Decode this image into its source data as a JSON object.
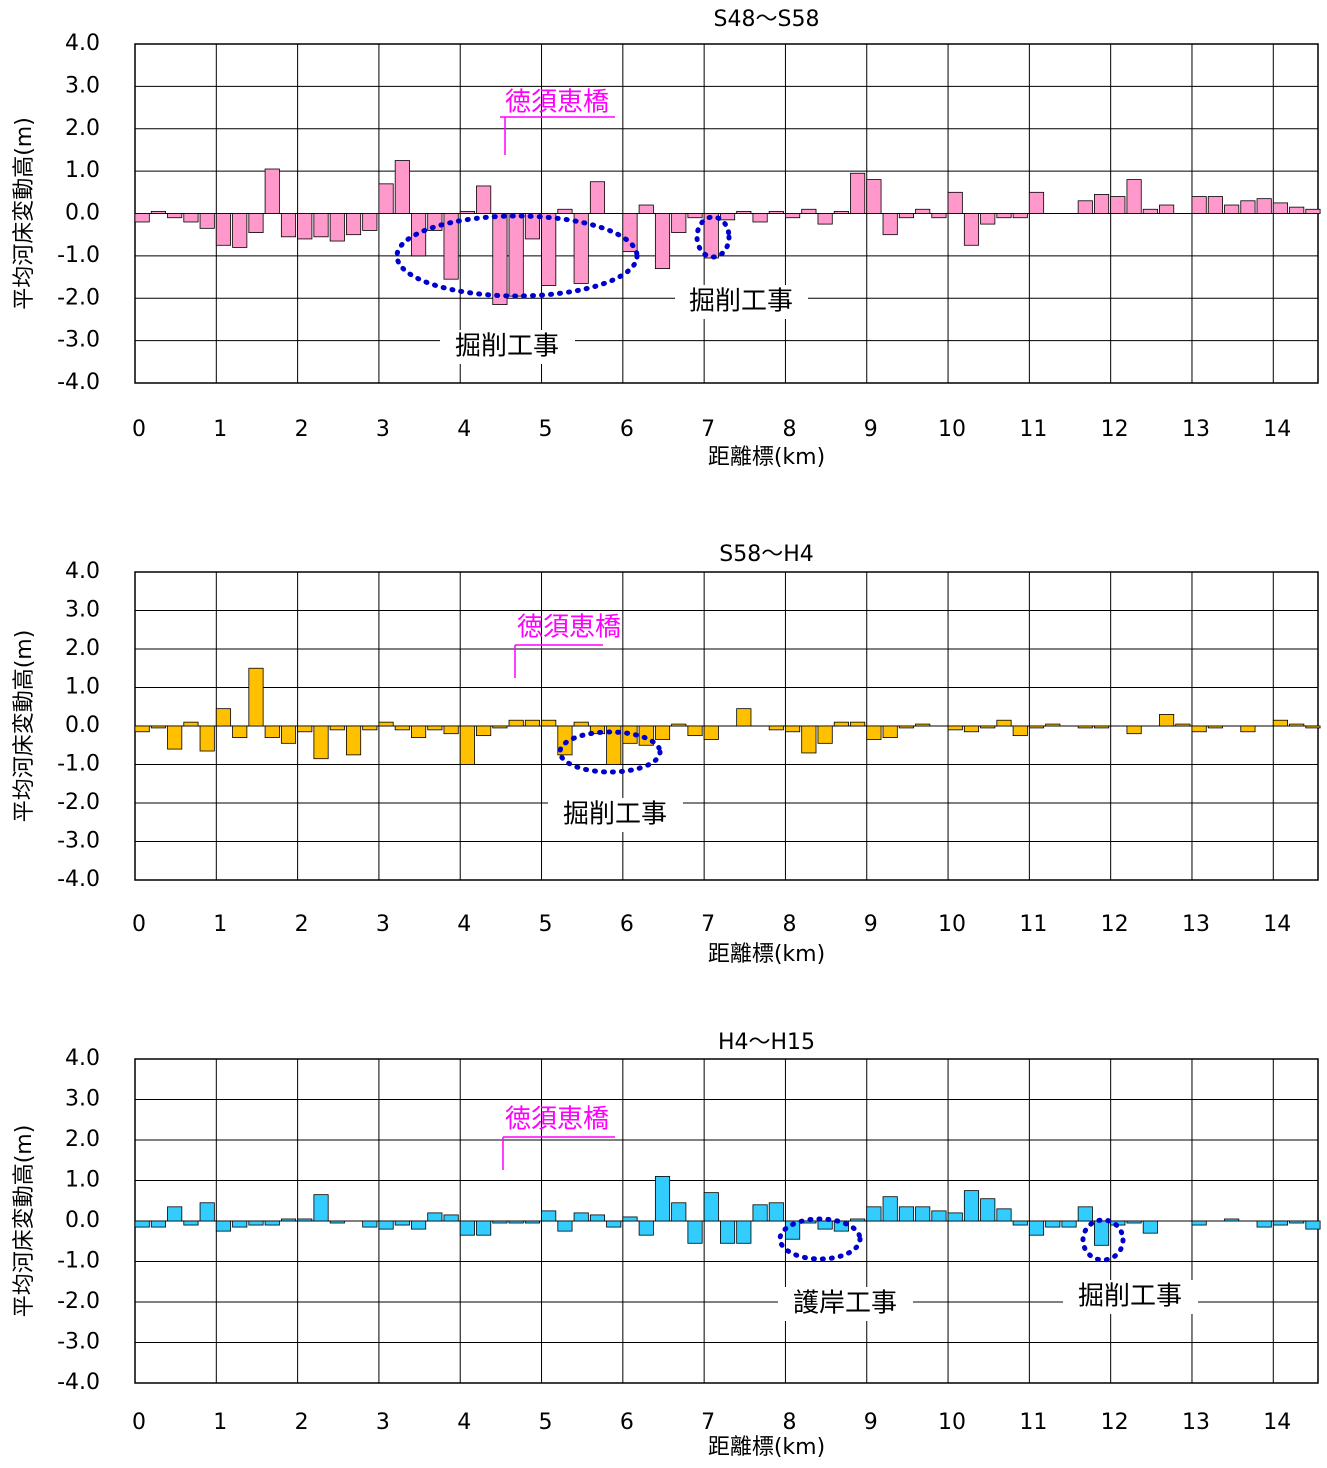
{
  "chart_data": [
    {
      "type": "bar",
      "title": "S48～S58",
      "x_label": "距離標(km)",
      "y_label": "平均河床変動高(m)",
      "color": "#FF99CC",
      "grid": true,
      "annotations": [
        "徳須恵橋",
        "掘削工事",
        "掘削工事"
      ],
      "xlim": [
        0,
        14.55
      ],
      "xticks": [
        0,
        1,
        2,
        3,
        4,
        5,
        6,
        7,
        8,
        9,
        10,
        11,
        12,
        13,
        14
      ],
      "ylim": [
        -4,
        4
      ],
      "yticks": [
        {
          "value": 4,
          "label": "4.0"
        },
        {
          "value": 3,
          "label": "3.0"
        },
        {
          "value": 2,
          "label": "2.0"
        },
        {
          "value": 1,
          "label": "1.0"
        },
        {
          "value": 0,
          "label": "0.0"
        },
        {
          "value": -1,
          "label": "-1.0"
        },
        {
          "value": -2,
          "label": "-2.0"
        },
        {
          "value": -3,
          "label": "-3.0"
        },
        {
          "value": -4,
          "label": "-4.0"
        }
      ],
      "x": [
        0,
        0.2,
        0.4,
        0.6,
        0.8,
        1,
        1.2,
        1.4,
        1.6,
        1.8,
        2,
        2.2,
        2.4,
        2.6,
        2.8,
        3,
        3.2,
        3.4,
        3.6,
        3.8,
        4,
        4.2,
        4.4,
        4.6,
        4.8,
        5,
        5.2,
        5.4,
        5.6,
        5.8,
        6,
        6.2,
        6.4,
        6.6,
        6.8,
        7,
        7.2,
        7.4,
        7.6,
        7.8,
        8,
        8.2,
        8.4,
        8.6,
        8.8,
        9,
        9.2,
        9.4,
        9.6,
        9.8,
        10,
        10.2,
        10.4,
        10.6,
        10.8,
        11,
        11.2,
        11.4,
        11.6,
        11.8,
        12,
        12.2,
        12.4,
        12.6,
        12.8,
        13,
        13.2,
        13.4,
        13.6,
        13.8,
        14,
        14.2,
        14.4
      ],
      "values": [
        -0.2,
        0.05,
        -0.1,
        -0.2,
        -0.35,
        -0.75,
        -0.8,
        -0.45,
        1.05,
        -0.55,
        -0.6,
        -0.55,
        -0.65,
        -0.5,
        -0.4,
        0.7,
        1.25,
        -1.0,
        -0.4,
        -1.55,
        0.05,
        0.65,
        -2.15,
        -1.95,
        -0.6,
        -1.7,
        0.1,
        -1.65,
        0.75,
        0,
        -0.9,
        0.2,
        -1.3,
        -0.45,
        -0.1,
        -1.05,
        -0.15,
        0.05,
        -0.2,
        0.05,
        -0.1,
        0.1,
        -0.25,
        0.05,
        0.95,
        0.8,
        -0.5,
        -0.1,
        0.1,
        -0.1,
        0.5,
        -0.75,
        -0.25,
        -0.1,
        -0.1,
        0.5,
        0,
        0,
        0.3,
        0.45,
        0.4,
        0.8,
        0.1,
        0.2,
        0,
        0.4,
        0.4,
        0.2,
        0.3,
        0.35,
        0.25,
        0.15,
        0.1
      ]
    },
    {
      "type": "bar",
      "title": "S58～H4",
      "x_label": "距離標(km)",
      "y_label": "平均河床変動高(m)",
      "color": "#FFC000",
      "grid": true,
      "annotations": [
        "徳須恵橋",
        "掘削工事"
      ],
      "xlim": [
        0,
        14.55
      ],
      "xticks": [
        0,
        1,
        2,
        3,
        4,
        5,
        6,
        7,
        8,
        9,
        10,
        11,
        12,
        13,
        14
      ],
      "ylim": [
        -4,
        4
      ],
      "yticks": [
        {
          "value": 4,
          "label": "4.0"
        },
        {
          "value": 3,
          "label": "3.0"
        },
        {
          "value": 2,
          "label": "2.0"
        },
        {
          "value": 1,
          "label": "1.0"
        },
        {
          "value": 0,
          "label": "0.0"
        },
        {
          "value": -1,
          "label": "-1.0"
        },
        {
          "value": -2,
          "label": "-2.0"
        },
        {
          "value": -3,
          "label": "-3.0"
        },
        {
          "value": -4,
          "label": "-4.0"
        }
      ],
      "x": [
        0,
        0.2,
        0.4,
        0.6,
        0.8,
        1,
        1.2,
        1.4,
        1.6,
        1.8,
        2,
        2.2,
        2.4,
        2.6,
        2.8,
        3,
        3.2,
        3.4,
        3.6,
        3.8,
        4,
        4.2,
        4.4,
        4.6,
        4.8,
        5,
        5.2,
        5.4,
        5.6,
        5.8,
        6,
        6.2,
        6.4,
        6.6,
        6.8,
        7,
        7.2,
        7.4,
        7.6,
        7.8,
        8,
        8.2,
        8.4,
        8.6,
        8.8,
        9,
        9.2,
        9.4,
        9.6,
        9.8,
        10,
        10.2,
        10.4,
        10.6,
        10.8,
        11,
        11.2,
        11.4,
        11.6,
        11.8,
        12,
        12.2,
        12.4,
        12.6,
        12.8,
        13,
        13.2,
        13.4,
        13.6,
        13.8,
        14,
        14.2,
        14.4
      ],
      "values": [
        -0.15,
        -0.05,
        -0.6,
        0.1,
        -0.65,
        0.45,
        -0.3,
        1.5,
        -0.3,
        -0.45,
        -0.15,
        -0.85,
        -0.1,
        -0.75,
        -0.1,
        0.1,
        -0.1,
        -0.3,
        -0.1,
        -0.2,
        -1.0,
        -0.25,
        -0.05,
        0.15,
        0.15,
        0.15,
        -0.75,
        0.1,
        -0.2,
        -1.0,
        -0.45,
        -0.5,
        -0.35,
        0.05,
        -0.25,
        -0.35,
        0,
        0.45,
        0,
        -0.1,
        -0.15,
        -0.7,
        -0.45,
        0.1,
        0.1,
        -0.35,
        -0.3,
        -0.05,
        0.05,
        0,
        -0.1,
        -0.15,
        -0.05,
        0.15,
        -0.25,
        -0.05,
        0.05,
        0,
        -0.05,
        -0.05,
        0,
        -0.2,
        0,
        0.3,
        0.05,
        -0.15,
        -0.05,
        0,
        -0.15,
        0,
        0.15,
        0.05,
        -0.05
      ]
    },
    {
      "type": "bar",
      "title": "H4～H15",
      "x_label": "距離標(km)",
      "y_label": "平均河床変動高(m)",
      "color": "#33CCFF",
      "grid": true,
      "annotations": [
        "徳須恵橋",
        "護岸工事",
        "掘削工事"
      ],
      "xlim": [
        0,
        14.55
      ],
      "xticks": [
        0,
        1,
        2,
        3,
        4,
        5,
        6,
        7,
        8,
        9,
        10,
        11,
        12,
        13,
        14
      ],
      "ylim": [
        -4,
        4
      ],
      "yticks": [
        {
          "value": 4,
          "label": "4.0"
        },
        {
          "value": 3,
          "label": "3.0"
        },
        {
          "value": 2,
          "label": "2.0"
        },
        {
          "value": 1,
          "label": "1.0"
        },
        {
          "value": 0,
          "label": "0.0"
        },
        {
          "value": -1,
          "label": "-1.0"
        },
        {
          "value": -2,
          "label": "-2.0"
        },
        {
          "value": -3,
          "label": "-3.0"
        },
        {
          "value": -4,
          "label": "-4.0"
        }
      ],
      "x": [
        0,
        0.2,
        0.4,
        0.6,
        0.8,
        1,
        1.2,
        1.4,
        1.6,
        1.8,
        2,
        2.2,
        2.4,
        2.6,
        2.8,
        3,
        3.2,
        3.4,
        3.6,
        3.8,
        4,
        4.2,
        4.4,
        4.6,
        4.8,
        5,
        5.2,
        5.4,
        5.6,
        5.8,
        6,
        6.2,
        6.4,
        6.6,
        6.8,
        7,
        7.2,
        7.4,
        7.6,
        7.8,
        8,
        8.2,
        8.4,
        8.6,
        8.8,
        9,
        9.2,
        9.4,
        9.6,
        9.8,
        10,
        10.2,
        10.4,
        10.6,
        10.8,
        11,
        11.2,
        11.4,
        11.6,
        11.8,
        12,
        12.2,
        12.4,
        12.6,
        12.8,
        13,
        13.2,
        13.4,
        13.6,
        13.8,
        14,
        14.2,
        14.4
      ],
      "values": [
        -0.15,
        -0.15,
        0.35,
        -0.1,
        0.45,
        -0.25,
        -0.15,
        -0.1,
        -0.1,
        0.05,
        0.05,
        0.65,
        -0.05,
        0,
        -0.15,
        -0.2,
        -0.1,
        -0.2,
        0.2,
        0.15,
        -0.35,
        -0.35,
        -0.05,
        -0.05,
        -0.05,
        0.25,
        -0.25,
        0.2,
        0.15,
        -0.15,
        0.1,
        -0.35,
        1.1,
        0.45,
        -0.55,
        0.7,
        -0.55,
        -0.55,
        0.4,
        0.45,
        -0.45,
        -0.05,
        -0.2,
        -0.25,
        0.05,
        0.35,
        0.6,
        0.35,
        0.35,
        0.25,
        0.2,
        0.75,
        0.55,
        0.3,
        -0.1,
        -0.35,
        -0.15,
        -0.15,
        0.35,
        -0.6,
        -0.1,
        -0.05,
        -0.3,
        0,
        0,
        -0.1,
        0,
        0.05,
        0,
        -0.15,
        -0.1,
        -0.05,
        -0.2
      ]
    }
  ]
}
